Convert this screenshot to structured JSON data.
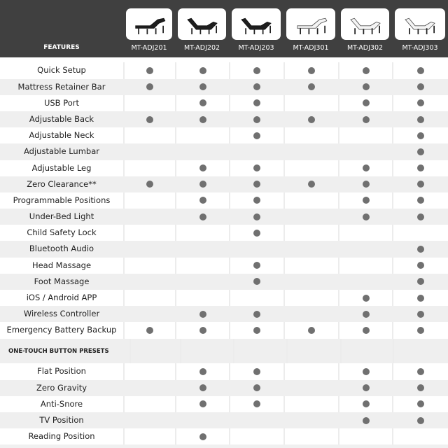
{
  "header": {
    "features_label": "FEATURES",
    "models": [
      {
        "name": "MT-ADJ201",
        "bed_color": "black"
      },
      {
        "name": "MT-ADJ202",
        "bed_color": "black"
      },
      {
        "name": "MT-ADJ203",
        "bed_color": "black"
      },
      {
        "name": "MT-ADJ301",
        "bed_color": "white"
      },
      {
        "name": "MT-ADJ302",
        "bed_color": "white"
      },
      {
        "name": "MT-ADJ303",
        "bed_color": "white"
      }
    ]
  },
  "colors": {
    "header_bg": "#404040",
    "dot": "#707070",
    "row_alt": "#efefef"
  },
  "features": [
    {
      "label": "Quick Setup",
      "has": [
        1,
        1,
        1,
        1,
        1,
        1
      ]
    },
    {
      "label": "Mattress Retainer Bar",
      "has": [
        1,
        1,
        1,
        1,
        1,
        1
      ]
    },
    {
      "label": "USB Port",
      "has": [
        0,
        1,
        1,
        0,
        1,
        1
      ]
    },
    {
      "label": "Adjustable Back",
      "has": [
        1,
        1,
        1,
        1,
        1,
        1
      ]
    },
    {
      "label": "Adjustable Neck",
      "has": [
        0,
        0,
        1,
        0,
        0,
        1
      ]
    },
    {
      "label": "Adjustable Lumbar",
      "has": [
        0,
        0,
        0,
        0,
        0,
        1
      ]
    },
    {
      "label": "Adjustable Leg",
      "has": [
        0,
        1,
        1,
        0,
        1,
        1
      ]
    },
    {
      "label": "Zero Clearance**",
      "has": [
        1,
        1,
        1,
        1,
        1,
        1
      ]
    },
    {
      "label": "Programmable Positions",
      "has": [
        0,
        1,
        1,
        0,
        1,
        1
      ]
    },
    {
      "label": "Under-Bed Light",
      "has": [
        0,
        1,
        1,
        0,
        1,
        1
      ]
    },
    {
      "label": "Child Safety Lock",
      "has": [
        0,
        0,
        1,
        0,
        0,
        0
      ]
    },
    {
      "label": "Bluetooth Audio",
      "has": [
        0,
        0,
        0,
        0,
        0,
        1
      ]
    },
    {
      "label": "Head Massage",
      "has": [
        0,
        0,
        1,
        0,
        0,
        1
      ]
    },
    {
      "label": "Foot Massage",
      "has": [
        0,
        0,
        1,
        0,
        0,
        1
      ]
    },
    {
      "label": "iOS / Android APP",
      "has": [
        0,
        0,
        0,
        0,
        1,
        1
      ]
    },
    {
      "label": "Wireless Controller",
      "has": [
        0,
        1,
        1,
        0,
        1,
        1
      ]
    },
    {
      "label": "Emergency Battery Backup",
      "has": [
        1,
        1,
        1,
        1,
        1,
        1
      ]
    }
  ],
  "presets_section": {
    "title": "ONE-TOUCH BUTTON PRESETS",
    "items": [
      {
        "label": "Flat Position",
        "has": [
          0,
          1,
          1,
          0,
          1,
          1
        ]
      },
      {
        "label": "Zero Gravity",
        "has": [
          0,
          1,
          1,
          0,
          1,
          1
        ]
      },
      {
        "label": "Anti-Snore",
        "has": [
          0,
          1,
          1,
          0,
          1,
          1
        ]
      },
      {
        "label": "TV Position",
        "has": [
          0,
          0,
          0,
          0,
          1,
          1
        ]
      },
      {
        "label": "Reading Position",
        "has": [
          0,
          1,
          0,
          0,
          0,
          0
        ]
      }
    ]
  }
}
